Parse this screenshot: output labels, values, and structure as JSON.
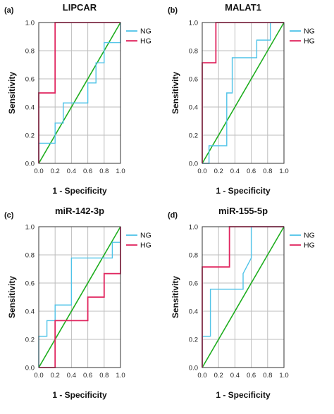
{
  "chart_data": [
    {
      "type": "line",
      "panel_label": "(a)",
      "title": "LIPCAR",
      "xlabel": "1 - Specificity",
      "ylabel": "Sensitivity",
      "xlim": [
        0,
        1
      ],
      "ylim": [
        0,
        1
      ],
      "xticks": [
        "0.0",
        "0.2",
        "0.4",
        "0.6",
        "0.8",
        "1.0"
      ],
      "yticks": [
        "0.0",
        "0.2",
        "0.4",
        "0.6",
        "0.8",
        "1.0"
      ],
      "grid": true,
      "legend": "top-right",
      "series": [
        {
          "name": "NG",
          "color": "#4fc3e8",
          "points": [
            [
              0,
              0
            ],
            [
              0,
              0.143
            ],
            [
              0.2,
              0.143
            ],
            [
              0.2,
              0.286
            ],
            [
              0.3,
              0.286
            ],
            [
              0.3,
              0.429
            ],
            [
              0.6,
              0.429
            ],
            [
              0.6,
              0.571
            ],
            [
              0.7,
              0.571
            ],
            [
              0.7,
              0.714
            ],
            [
              0.8,
              0.714
            ],
            [
              0.8,
              0.857
            ],
            [
              1.0,
              0.857
            ],
            [
              1.0,
              1.0
            ]
          ]
        },
        {
          "name": "HG",
          "color": "#e0245e",
          "points": [
            [
              0,
              0
            ],
            [
              0,
              0.5
            ],
            [
              0.2,
              0.5
            ],
            [
              0.2,
              1.0
            ],
            [
              1.0,
              1.0
            ]
          ]
        }
      ],
      "reference_color": "#1fae1f"
    },
    {
      "type": "line",
      "panel_label": "(b)",
      "title": "MALAT1",
      "xlabel": "1 - Specificity",
      "ylabel": "Sensitivity",
      "xlim": [
        0,
        1
      ],
      "ylim": [
        0,
        1
      ],
      "xticks": [
        "0.0",
        "0.2",
        "0.4",
        "0.6",
        "0.8",
        "1.0"
      ],
      "yticks": [
        "0.0",
        "0.2",
        "0.4",
        "0.6",
        "0.8",
        "1.0"
      ],
      "grid": true,
      "legend": "top-right",
      "series": [
        {
          "name": "NG",
          "color": "#4fc3e8",
          "points": [
            [
              0,
              0
            ],
            [
              0.083,
              0
            ],
            [
              0.083,
              0.125
            ],
            [
              0.3,
              0.125
            ],
            [
              0.3,
              0.5
            ],
            [
              0.367,
              0.5
            ],
            [
              0.367,
              0.75
            ],
            [
              0.667,
              0.75
            ],
            [
              0.667,
              0.875
            ],
            [
              0.833,
              0.875
            ],
            [
              0.833,
              1.0
            ],
            [
              1.0,
              1.0
            ]
          ]
        },
        {
          "name": "HG",
          "color": "#e0245e",
          "points": [
            [
              0,
              0
            ],
            [
              0,
              0.714
            ],
            [
              0.167,
              0.714
            ],
            [
              0.167,
              1.0
            ],
            [
              1.0,
              1.0
            ]
          ]
        }
      ],
      "reference_color": "#1fae1f"
    },
    {
      "type": "line",
      "panel_label": "(c)",
      "title": "miR-142-3p",
      "xlabel": "1 - Specificity",
      "ylabel": "Sensitivity",
      "xlim": [
        0,
        1
      ],
      "ylim": [
        0,
        1
      ],
      "xticks": [
        "0.0",
        "0.2",
        "0.4",
        "0.6",
        "0.8",
        "1.0"
      ],
      "yticks": [
        "0.0",
        "0.2",
        "0.4",
        "0.6",
        "0.8",
        "1.0"
      ],
      "grid": true,
      "legend": "top-right",
      "series": [
        {
          "name": "NG",
          "color": "#4fc3e8",
          "points": [
            [
              0,
              0
            ],
            [
              0,
              0.222
            ],
            [
              0.1,
              0.222
            ],
            [
              0.1,
              0.333
            ],
            [
              0.2,
              0.333
            ],
            [
              0.2,
              0.444
            ],
            [
              0.4,
              0.444
            ],
            [
              0.4,
              0.778
            ],
            [
              0.9,
              0.778
            ],
            [
              0.9,
              0.889
            ],
            [
              1.0,
              0.889
            ],
            [
              1.0,
              1.0
            ]
          ]
        },
        {
          "name": "HG",
          "color": "#e0245e",
          "points": [
            [
              0,
              0
            ],
            [
              0.2,
              0
            ],
            [
              0.2,
              0.333
            ],
            [
              0.6,
              0.333
            ],
            [
              0.6,
              0.5
            ],
            [
              0.8,
              0.5
            ],
            [
              0.8,
              0.667
            ],
            [
              1.0,
              0.667
            ],
            [
              1.0,
              1.0
            ]
          ]
        }
      ],
      "reference_color": "#1fae1f"
    },
    {
      "type": "line",
      "panel_label": "(d)",
      "title": "miR-155-5p",
      "xlabel": "1 - Specificity",
      "ylabel": "Sensitivity",
      "xlim": [
        0,
        1
      ],
      "ylim": [
        0,
        1
      ],
      "xticks": [
        "0.0",
        "0.2",
        "0.4",
        "0.6",
        "0.8",
        "1.0"
      ],
      "yticks": [
        "0.0",
        "0.2",
        "0.4",
        "0.6",
        "0.8",
        "1.0"
      ],
      "grid": true,
      "legend": "top-right",
      "series": [
        {
          "name": "NG",
          "color": "#4fc3e8",
          "points": [
            [
              0,
              0
            ],
            [
              0,
              0.222
            ],
            [
              0.1,
              0.222
            ],
            [
              0.1,
              0.556
            ],
            [
              0.5,
              0.556
            ],
            [
              0.5,
              0.667
            ],
            [
              0.6,
              0.778
            ],
            [
              0.6,
              1.0
            ],
            [
              1.0,
              1.0
            ]
          ]
        },
        {
          "name": "HG",
          "color": "#e0245e",
          "points": [
            [
              0,
              0
            ],
            [
              0,
              0.714
            ],
            [
              0.333,
              0.714
            ],
            [
              0.333,
              1.0
            ],
            [
              1.0,
              1.0
            ]
          ]
        }
      ],
      "reference_color": "#1fae1f"
    }
  ]
}
